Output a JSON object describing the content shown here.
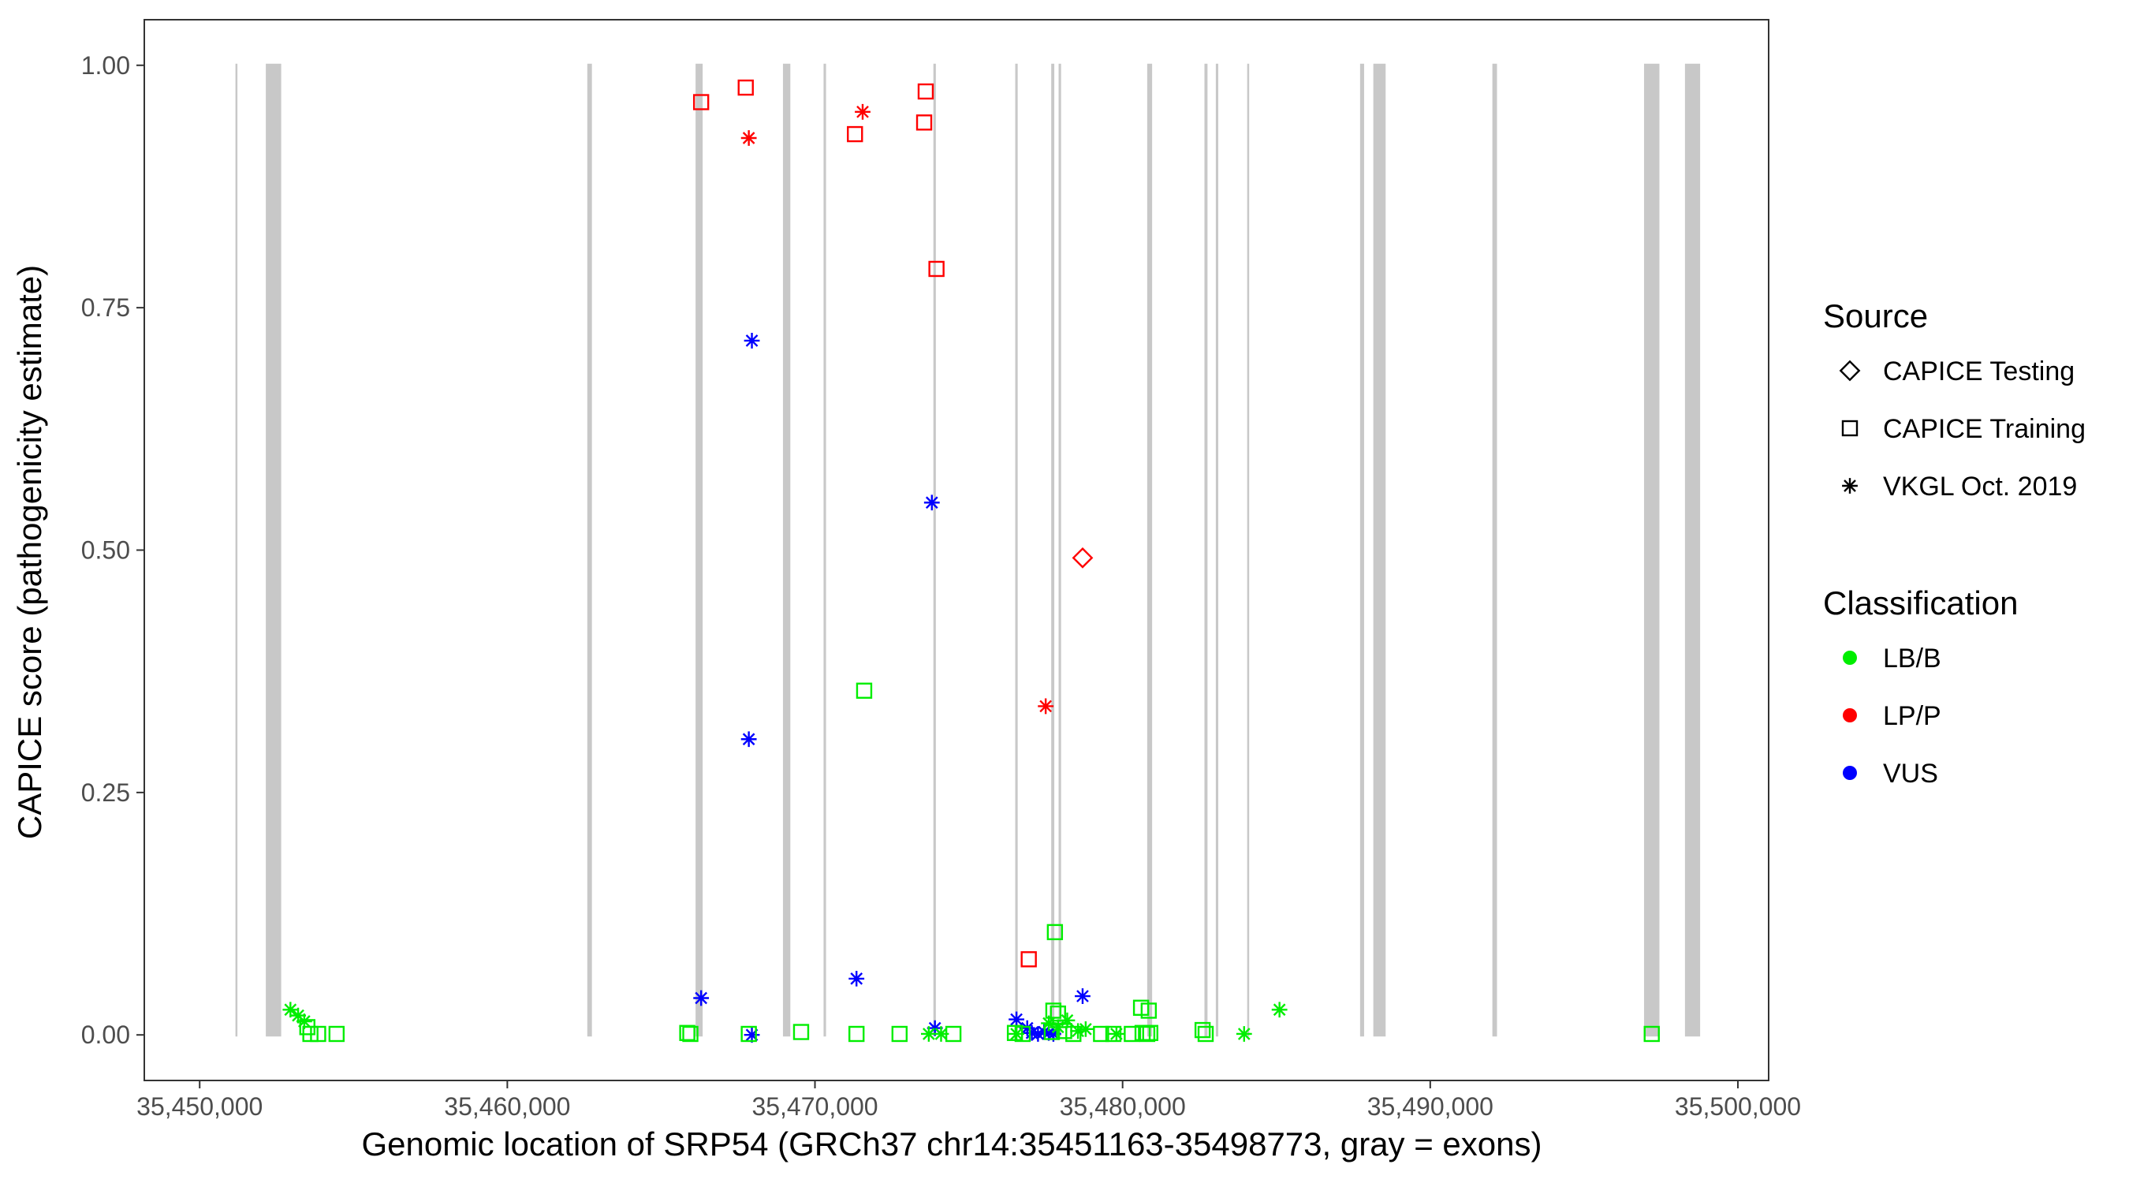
{
  "chart_data": {
    "type": "scatter",
    "title": "",
    "xlabel": "Genomic location of SRP54 (GRCh37 chr14:35451163-35498773, gray = exons)",
    "ylabel": "CAPICE score (pathogenicity estimate)",
    "xlim": [
      35448200,
      35501000
    ],
    "ylim": [
      -0.047,
      1.047
    ],
    "x_ticks": [
      35450000,
      35460000,
      35470000,
      35480000,
      35490000,
      35500000
    ],
    "x_tick_labels": [
      "35,450,000",
      "35,460,000",
      "35,470,000",
      "35,480,000",
      "35,490,000",
      "35,500,000"
    ],
    "y_ticks": [
      0,
      0.25,
      0.5,
      0.75,
      1.0
    ],
    "y_tick_labels": [
      "0.00",
      "0.25",
      "0.50",
      "0.75",
      "1.00"
    ],
    "grid": false,
    "legend_position": "right",
    "exons": [
      [
        35451163,
        35451200
      ],
      [
        35452150,
        35452650
      ],
      [
        35462600,
        35462750
      ],
      [
        35466120,
        35466350
      ],
      [
        35468960,
        35469200
      ],
      [
        35470280,
        35470360
      ],
      [
        35473850,
        35473930
      ],
      [
        35476510,
        35476590
      ],
      [
        35477680,
        35477780
      ],
      [
        35477920,
        35478000
      ],
      [
        35480800,
        35480960
      ],
      [
        35482660,
        35482760
      ],
      [
        35483030,
        35483110
      ],
      [
        35484050,
        35484110
      ],
      [
        35487720,
        35487850
      ],
      [
        35488150,
        35488550
      ],
      [
        35492020,
        35492170
      ],
      [
        35496950,
        35497450
      ],
      [
        35498280,
        35498773
      ]
    ],
    "colors": {
      "LB/B": "#00ee00",
      "LP/P": "#ff0000",
      "VUS": "#0000ff",
      "exon": "#c8c8c8",
      "panel_border": "#333333"
    },
    "legend": {
      "source_title": "Source",
      "source_items": [
        {
          "label": "CAPICE Testing",
          "shape": "diamond"
        },
        {
          "label": "CAPICE Training",
          "shape": "square"
        },
        {
          "label": "VKGL Oct. 2019",
          "shape": "asterisk"
        }
      ],
      "class_title": "Classification",
      "class_items": [
        {
          "label": "LB/B",
          "color": "#00ee00"
        },
        {
          "label": "LP/P",
          "color": "#ff0000"
        },
        {
          "label": "VUS",
          "color": "#0000ff"
        }
      ]
    },
    "series": [
      {
        "classification": "LP/P",
        "source": "CAPICE Training",
        "points": [
          [
            35466300,
            0.962
          ],
          [
            35467750,
            0.977
          ],
          [
            35471300,
            0.929
          ],
          [
            35473600,
            0.973
          ],
          [
            35473550,
            0.941
          ],
          [
            35473950,
            0.79
          ],
          [
            35476950,
            0.078
          ]
        ]
      },
      {
        "classification": "LP/P",
        "source": "VKGL Oct. 2019",
        "points": [
          [
            35467850,
            0.925
          ],
          [
            35471550,
            0.952
          ],
          [
            35477500,
            0.339
          ]
        ]
      },
      {
        "classification": "LP/P",
        "source": "CAPICE Testing",
        "points": [
          [
            35478700,
            0.492
          ]
        ]
      },
      {
        "classification": "VUS",
        "source": "VKGL Oct. 2019",
        "points": [
          [
            35467950,
            0.716
          ],
          [
            35473800,
            0.549
          ],
          [
            35467850,
            0.305
          ],
          [
            35466300,
            0.038
          ],
          [
            35471350,
            0.058
          ],
          [
            35478700,
            0.04
          ],
          [
            35467950,
            0.0
          ],
          [
            35473900,
            0.007
          ],
          [
            35476550,
            0.016
          ],
          [
            35476900,
            0.007
          ],
          [
            35477050,
            0.002
          ],
          [
            35477250,
            0.001
          ],
          [
            35477450,
            0.003
          ],
          [
            35477600,
            0.002
          ],
          [
            35477750,
            0.001
          ]
        ]
      },
      {
        "classification": "LB/B",
        "source": "CAPICE Training",
        "points": [
          [
            35471600,
            0.355
          ],
          [
            35477800,
            0.106
          ],
          [
            35477750,
            0.025
          ],
          [
            35477900,
            0.022
          ],
          [
            35480600,
            0.028
          ],
          [
            35480850,
            0.025
          ],
          [
            35453500,
            0.008
          ],
          [
            35453600,
            0.001
          ],
          [
            35453850,
            0.001
          ],
          [
            35454450,
            0.001
          ],
          [
            35465850,
            0.002
          ],
          [
            35465950,
            0.001
          ],
          [
            35467850,
            0.001
          ],
          [
            35469550,
            0.003
          ],
          [
            35471350,
            0.001
          ],
          [
            35472750,
            0.001
          ],
          [
            35474500,
            0.001
          ],
          [
            35476500,
            0.002
          ],
          [
            35476750,
            0.001
          ],
          [
            35477700,
            0.003
          ],
          [
            35478100,
            0.004
          ],
          [
            35478400,
            0.001
          ],
          [
            35479300,
            0.001
          ],
          [
            35479700,
            0.001
          ],
          [
            35480300,
            0.001
          ],
          [
            35480650,
            0.002
          ],
          [
            35480800,
            0.001
          ],
          [
            35480900,
            0.002
          ],
          [
            35482600,
            0.005
          ],
          [
            35482700,
            0.001
          ],
          [
            35497200,
            0.001
          ]
        ]
      },
      {
        "classification": "LB/B",
        "source": "VKGL Oct. 2019",
        "points": [
          [
            35452950,
            0.026
          ],
          [
            35453200,
            0.02
          ],
          [
            35453400,
            0.014
          ],
          [
            35473700,
            0.001
          ],
          [
            35474100,
            0.001
          ],
          [
            35476550,
            0.001
          ],
          [
            35477600,
            0.012
          ],
          [
            35477900,
            0.008
          ],
          [
            35478200,
            0.015
          ],
          [
            35478550,
            0.004
          ],
          [
            35478800,
            0.006
          ],
          [
            35479800,
            0.001
          ],
          [
            35483950,
            0.001
          ],
          [
            35485100,
            0.026
          ]
        ]
      }
    ]
  }
}
